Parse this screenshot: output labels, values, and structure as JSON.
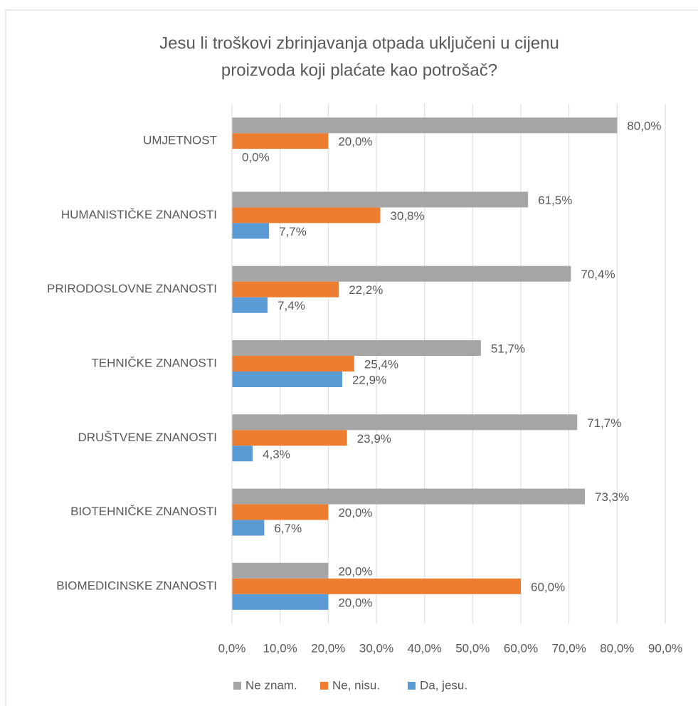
{
  "chart_data": {
    "type": "hbar",
    "title": [
      "Jesu li troškovi zbrinjavanja otpada uključeni u cijenu",
      "proizvoda koji plaćate kao potrošač?"
    ],
    "categories": [
      "UMJETNOST",
      "HUMANISTIČKE ZNANOSTI",
      "PRIRODOSLOVNE ZNANOSTI",
      "TEHNIČKE ZNANOSTI",
      "DRUŠTVENE ZNANOSTI",
      "BIOTEHNIČKE ZNANOSTI",
      "BIOMEDICINSKE ZNANOSTI"
    ],
    "series": [
      {
        "name": "Ne znam.",
        "color": "#a5a5a5",
        "values": [
          80.0,
          61.5,
          70.4,
          51.7,
          71.7,
          73.3,
          20.0
        ],
        "value_labels": [
          "80,0%",
          "61,5%",
          "70,4%",
          "51,7%",
          "71,7%",
          "73,3%",
          "20,0%"
        ]
      },
      {
        "name": "Ne, nisu.",
        "color": "#ed7d31",
        "values": [
          20.0,
          30.8,
          22.2,
          25.4,
          23.9,
          20.0,
          60.0
        ],
        "value_labels": [
          "20,0%",
          "30,8%",
          "22,2%",
          "25,4%",
          "23,9%",
          "20,0%",
          "60,0%"
        ]
      },
      {
        "name": "Da, jesu.",
        "color": "#5b9bd5",
        "values": [
          0.0,
          7.7,
          7.4,
          22.9,
          4.3,
          6.7,
          20.0
        ],
        "value_labels": [
          "0,0%",
          "7,7%",
          "7,4%",
          "22,9%",
          "4,3%",
          "6,7%",
          "20,0%"
        ]
      }
    ],
    "xlim": [
      0,
      90
    ],
    "xticks": [
      {
        "value": 0,
        "label": "0,0%"
      },
      {
        "value": 10,
        "label": "10,0%"
      },
      {
        "value": 20,
        "label": "20,0%"
      },
      {
        "value": 30,
        "label": "30,0%"
      },
      {
        "value": 40,
        "label": "40,0%"
      },
      {
        "value": 50,
        "label": "50,0%"
      },
      {
        "value": 60,
        "label": "60,0%"
      },
      {
        "value": 70,
        "label": "70,0%"
      },
      {
        "value": 80,
        "label": "80,0%"
      },
      {
        "value": 90,
        "label": "90,0%"
      }
    ],
    "grid": true,
    "legend": "bottom"
  }
}
